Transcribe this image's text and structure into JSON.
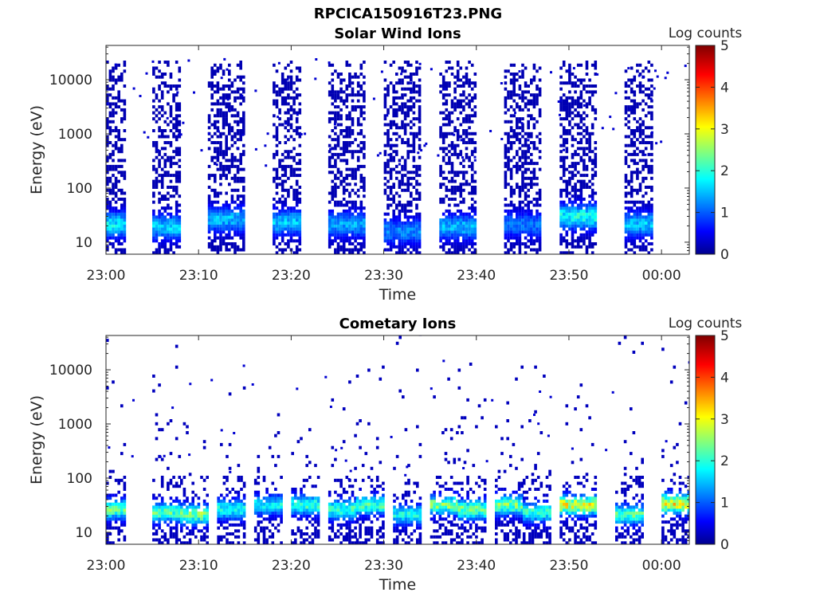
{
  "figure_title": "RPCICA150916T23.PNG",
  "chart_data": [
    {
      "type": "heatmap",
      "title": "Solar Wind Ions",
      "xlabel": "Time",
      "ylabel": "Energy (eV)",
      "y_scale": "log",
      "ylim": [
        6,
        43000
      ],
      "xlim": [
        "23:00",
        "00:03"
      ],
      "x_tick_labels": [
        "23:00",
        "23:10",
        "23:20",
        "23:30",
        "23:40",
        "23:50",
        "00:00"
      ],
      "y_tick_labels": [
        "10",
        "100",
        "1000",
        "10000"
      ],
      "colorbar": {
        "label": "Log counts",
        "range": [
          0,
          5
        ],
        "ticks": [
          "0",
          "1",
          "2",
          "3",
          "4",
          "5"
        ]
      },
      "grid": false,
      "colormap": "jet",
      "scan_windows": [
        {
          "start": "23:00",
          "end": "23:02",
          "peak_energy_eV": 20,
          "peak_log_counts": 2.2
        },
        {
          "start": "23:05",
          "end": "23:08",
          "peak_energy_eV": 18,
          "peak_log_counts": 2.0
        },
        {
          "start": "23:11",
          "end": "23:15",
          "peak_energy_eV": 25,
          "peak_log_counts": 1.9
        },
        {
          "start": "23:18",
          "end": "23:21",
          "peak_energy_eV": 22,
          "peak_log_counts": 2.0
        },
        {
          "start": "23:24",
          "end": "23:28",
          "peak_energy_eV": 20,
          "peak_log_counts": 1.8
        },
        {
          "start": "23:30",
          "end": "23:34",
          "peak_energy_eV": 15,
          "peak_log_counts": 1.6
        },
        {
          "start": "23:36",
          "end": "23:40",
          "peak_energy_eV": 18,
          "peak_log_counts": 1.9
        },
        {
          "start": "23:43",
          "end": "23:47",
          "peak_energy_eV": 20,
          "peak_log_counts": 1.5
        },
        {
          "start": "23:49",
          "end": "23:53",
          "peak_energy_eV": 28,
          "peak_log_counts": 2.4
        },
        {
          "start": "23:56",
          "end": "23:59",
          "peak_energy_eV": 20,
          "peak_log_counts": 2.0
        }
      ]
    },
    {
      "type": "heatmap",
      "title": "Cometary Ions",
      "xlabel": "Time",
      "ylabel": "Energy (eV)",
      "y_scale": "log",
      "ylim": [
        6,
        43000
      ],
      "xlim": [
        "23:00",
        "00:03"
      ],
      "x_tick_labels": [
        "23:00",
        "23:10",
        "23:20",
        "23:30",
        "23:40",
        "23:50",
        "00:00"
      ],
      "y_tick_labels": [
        "10",
        "100",
        "1000",
        "10000"
      ],
      "colorbar": {
        "label": "Log counts",
        "range": [
          0,
          5
        ],
        "ticks": [
          "0",
          "1",
          "2",
          "3",
          "4",
          "5"
        ]
      },
      "grid": false,
      "colormap": "jet",
      "scan_windows": [
        {
          "start": "23:00",
          "end": "23:02",
          "peak_energy_eV": 25,
          "peak_log_counts": 2.8
        },
        {
          "start": "23:05",
          "end": "23:08",
          "peak_energy_eV": 22,
          "peak_log_counts": 2.7
        },
        {
          "start": "23:08",
          "end": "23:11",
          "peak_energy_eV": 20,
          "peak_log_counts": 3.0
        },
        {
          "start": "23:12",
          "end": "23:15",
          "peak_energy_eV": 25,
          "peak_log_counts": 2.4
        },
        {
          "start": "23:16",
          "end": "23:19",
          "peak_energy_eV": 30,
          "peak_log_counts": 2.2
        },
        {
          "start": "23:20",
          "end": "23:23",
          "peak_energy_eV": 30,
          "peak_log_counts": 2.5
        },
        {
          "start": "23:24",
          "end": "23:27",
          "peak_energy_eV": 25,
          "peak_log_counts": 2.6
        },
        {
          "start": "23:27",
          "end": "23:30",
          "peak_energy_eV": 30,
          "peak_log_counts": 2.6
        },
        {
          "start": "23:31",
          "end": "23:34",
          "peak_energy_eV": 20,
          "peak_log_counts": 2.3
        },
        {
          "start": "23:35",
          "end": "23:38",
          "peak_energy_eV": 30,
          "peak_log_counts": 3.0
        },
        {
          "start": "23:38",
          "end": "23:41",
          "peak_energy_eV": 25,
          "peak_log_counts": 2.9
        },
        {
          "start": "23:42",
          "end": "23:45",
          "peak_energy_eV": 30,
          "peak_log_counts": 2.9
        },
        {
          "start": "23:45",
          "end": "23:48",
          "peak_energy_eV": 22,
          "peak_log_counts": 2.5
        },
        {
          "start": "23:49",
          "end": "23:53",
          "peak_energy_eV": 30,
          "peak_log_counts": 3.6
        },
        {
          "start": "23:55",
          "end": "23:58",
          "peak_energy_eV": 20,
          "peak_log_counts": 2.7
        },
        {
          "start": "00:00",
          "end": "00:03",
          "peak_energy_eV": 32,
          "peak_log_counts": 3.7
        }
      ]
    }
  ]
}
